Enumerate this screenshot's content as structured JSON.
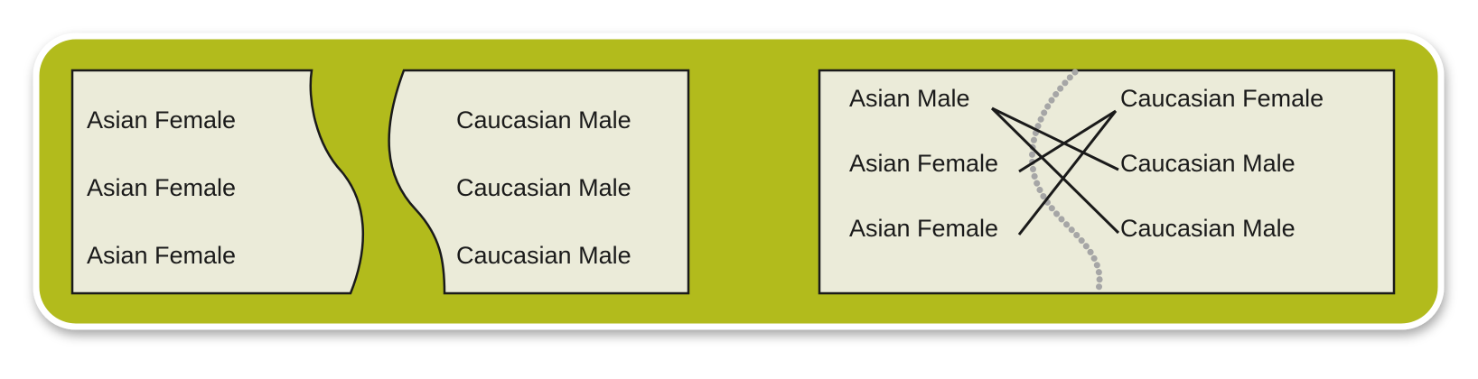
{
  "colors": {
    "frame_fill": "#b2bb1e",
    "frame_border": "#ffffff",
    "panel_fill": "#ebebd9",
    "panel_stroke": "#1a1a1a",
    "boundary_dots": "#a6a6a6"
  },
  "left_group": {
    "labels": [
      "Asian Female",
      "Asian Female",
      "Asian Female"
    ]
  },
  "middle_group": {
    "labels": [
      "Caucasian Male",
      "Caucasian Male",
      "Caucasian Male"
    ]
  },
  "mixed_panel": {
    "left_labels": [
      "Asian Male",
      "Asian Female",
      "Asian Female"
    ],
    "right_labels": [
      "Caucasian Female",
      "Caucasian Male",
      "Caucasian Male"
    ],
    "connections": [
      {
        "from": 0,
        "to": 1
      },
      {
        "from": 0,
        "to": 2
      },
      {
        "from": 1,
        "to": 0
      },
      {
        "from": 2,
        "to": 0
      }
    ]
  }
}
